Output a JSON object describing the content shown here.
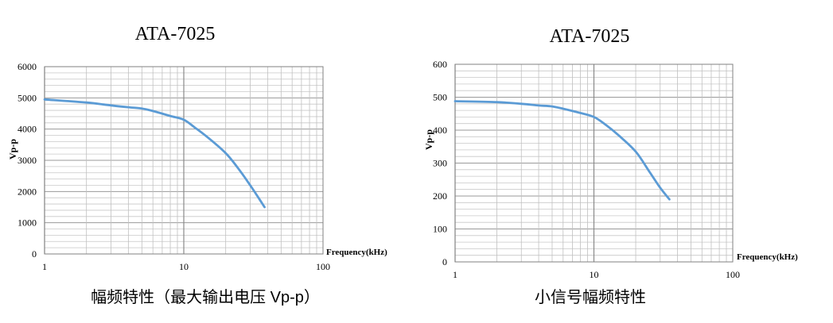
{
  "chart_data": [
    {
      "type": "line",
      "title": "ATA-7025",
      "caption": "幅频特性（最大输出电压 Vp-p）",
      "xlabel": "Frequency(kHz)",
      "ylabel": "Vp-p",
      "x_scale": "log",
      "xlim": [
        1,
        100
      ],
      "ylim": [
        0,
        6000
      ],
      "x_ticks": [
        "1",
        "10",
        "100"
      ],
      "y_ticks": [
        "0",
        "1000",
        "2000",
        "3000",
        "4000",
        "5000",
        "6000"
      ],
      "grid": true,
      "line_color": "#5b9bd5",
      "series": [
        {
          "x": [
            1,
            2,
            3,
            4,
            5,
            6,
            8,
            10,
            12,
            15,
            20,
            25,
            30,
            35,
            38
          ],
          "y": [
            4950,
            4850,
            4760,
            4700,
            4660,
            4580,
            4420,
            4300,
            4050,
            3720,
            3230,
            2700,
            2200,
            1750,
            1500
          ]
        }
      ]
    },
    {
      "type": "line",
      "title": "ATA-7025",
      "caption": "小信号幅频特性",
      "xlabel": "Frequency(kHz)",
      "ylabel": "Vp-p",
      "x_scale": "log",
      "xlim": [
        1,
        100
      ],
      "ylim": [
        0,
        600
      ],
      "x_ticks": [
        "1",
        "10",
        "100"
      ],
      "y_ticks": [
        "0",
        "100",
        "200",
        "300",
        "400",
        "500",
        "600"
      ],
      "grid": true,
      "line_color": "#5b9bd5",
      "series": [
        {
          "x": [
            1,
            2,
            3,
            4,
            5,
            6,
            8,
            10,
            12,
            15,
            20,
            25,
            30,
            35
          ],
          "y": [
            488,
            485,
            480,
            475,
            472,
            465,
            452,
            440,
            418,
            385,
            335,
            275,
            225,
            190
          ]
        }
      ]
    }
  ]
}
